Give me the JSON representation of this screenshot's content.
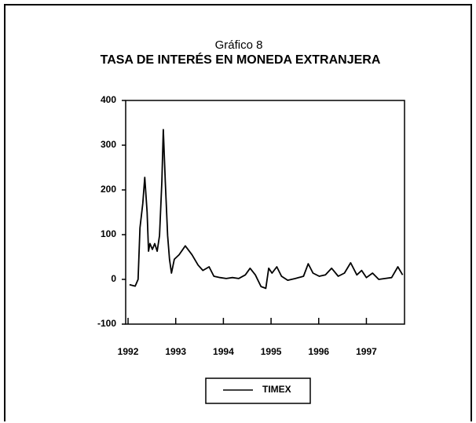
{
  "chart_data": {
    "type": "line",
    "subtitle": "Gráfico 8",
    "title": "TASA DE INTERÉS EN MONEDA EXTRANJERA",
    "x": [
      1992.03,
      1992.15,
      1992.21,
      1992.25,
      1992.31,
      1992.35,
      1992.4,
      1992.43,
      1992.46,
      1992.51,
      1992.56,
      1992.61,
      1992.66,
      1992.71,
      1992.74,
      1992.78,
      1992.83,
      1992.87,
      1992.91,
      1992.97,
      1993.07,
      1993.2,
      1993.34,
      1993.47,
      1993.57,
      1993.7,
      1993.8,
      1993.93,
      1994.06,
      1994.19,
      1994.32,
      1994.46,
      1994.56,
      1994.67,
      1994.79,
      1994.89,
      1994.95,
      1995.02,
      1995.12,
      1995.22,
      1995.35,
      1995.51,
      1995.68,
      1995.78,
      1995.88,
      1996.01,
      1996.14,
      1996.27,
      1996.41,
      1996.54,
      1996.67,
      1996.8,
      1996.9,
      1997.0,
      1997.13,
      1997.26,
      1997.39,
      1997.53,
      1997.66,
      1997.76
    ],
    "series": [
      {
        "name": "TIMEX",
        "color": "#000000",
        "values": [
          -12,
          -15,
          0,
          115,
          170,
          228,
          150,
          63,
          80,
          67,
          80,
          63,
          98,
          220,
          335,
          220,
          98,
          45,
          14,
          45,
          55,
          75,
          55,
          32,
          20,
          28,
          7,
          4,
          2,
          4,
          2,
          10,
          25,
          10,
          -16,
          -20,
          25,
          14,
          28,
          7,
          -2,
          2,
          7,
          35,
          14,
          7,
          10,
          25,
          7,
          14,
          37,
          10,
          20,
          4,
          14,
          0,
          2,
          4,
          28,
          10
        ]
      }
    ],
    "xlim": [
      1991.95,
      1997.8
    ],
    "xticks": [
      1992,
      1993,
      1994,
      1995,
      1996,
      1997
    ],
    "ylim": [
      -100,
      400
    ],
    "yticks": [
      -100,
      0,
      100,
      200,
      300,
      400
    ]
  }
}
